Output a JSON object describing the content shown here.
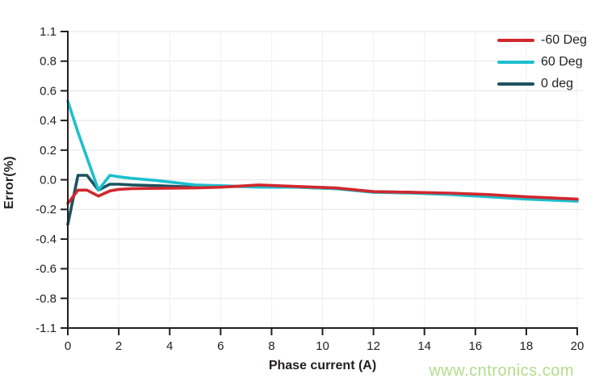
{
  "chart_data": {
    "type": "line",
    "title": "",
    "xlabel": "Phase current (A)",
    "ylabel": "Error(%)",
    "xlim": [
      0,
      20
    ],
    "x_ticks": [
      0,
      2,
      4,
      6,
      8,
      10,
      12,
      14,
      16,
      18,
      20
    ],
    "y_tick_labels": [
      "1.1",
      "0.8",
      "0.6",
      "0.4",
      "0.2",
      "0.0",
      "-0.2",
      "-0.4",
      "-0.6",
      "-0.8",
      "-1.1"
    ],
    "grid": true,
    "legend_position": "top-right",
    "axis_color": "#231f20",
    "grid_color": "#e9e9e9",
    "x": [
      0,
      0.4,
      0.75,
      1.2,
      1.65,
      2,
      2.5,
      3.5,
      5,
      6,
      7.5,
      9,
      10.5,
      12,
      13.5,
      15,
      16.5,
      18,
      20
    ],
    "series": [
      {
        "name": "-60 Deg",
        "color": "#d0282e",
        "values": [
          -0.16,
          -0.07,
          -0.07,
          -0.11,
          -0.075,
          -0.065,
          -0.06,
          -0.058,
          -0.055,
          -0.05,
          -0.035,
          -0.045,
          -0.055,
          -0.08,
          -0.085,
          -0.09,
          -0.1,
          -0.115,
          -0.13
        ]
      },
      {
        "name": "60 Deg",
        "color": "#1ebfce",
        "values": [
          0.53,
          0.32,
          0.15,
          -0.07,
          0.03,
          0.02,
          0.01,
          -0.005,
          -0.035,
          -0.04,
          -0.05,
          -0.05,
          -0.06,
          -0.085,
          -0.09,
          -0.1,
          -0.115,
          -0.13,
          -0.145
        ]
      },
      {
        "name": "0 deg",
        "color": "#1d5260",
        "values": [
          -0.3,
          0.03,
          0.03,
          -0.07,
          -0.03,
          -0.03,
          -0.035,
          -0.04,
          -0.05,
          -0.045,
          -0.045,
          -0.05,
          -0.06,
          -0.08,
          -0.085,
          -0.095,
          -0.105,
          -0.12,
          -0.14
        ]
      }
    ]
  },
  "watermark": {
    "text": "www.cntronics.com",
    "color": "#b2dc8a"
  }
}
